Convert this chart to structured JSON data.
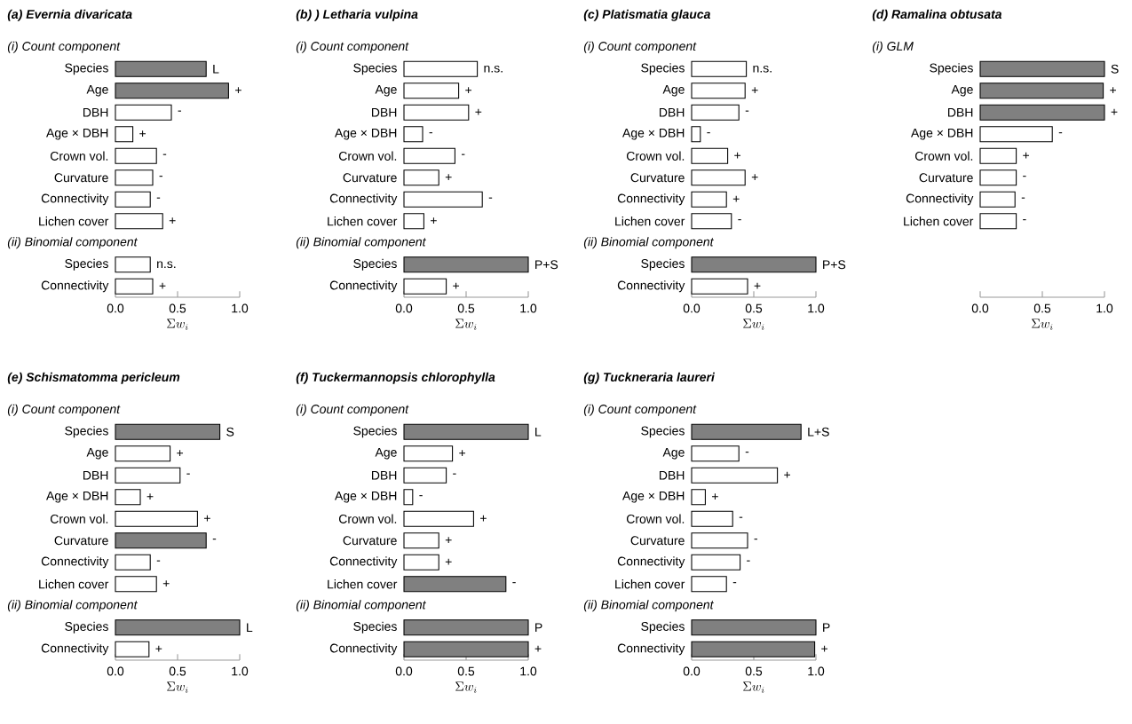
{
  "chart_data": [
    {
      "type": "bar",
      "orientation": "horizontal",
      "title": "(a) Evernia divaricata",
      "xlabel": "\\Sigma w_{i}",
      "xlim": [
        0,
        1
      ],
      "xticks": [
        {
          "value": 0,
          "label": "0.0"
        },
        {
          "value": 0.5,
          "label": "0.5"
        },
        {
          "value": 1,
          "label": "1.0"
        }
      ],
      "annotations": [
        "(i) Count component",
        "(ii) Binomial component"
      ],
      "categories": [
        null,
        "Species",
        "Age",
        "DBH",
        "Age × DBH",
        "Crown vol.",
        "Curvature",
        "Connectivity",
        "Lichen cover",
        null,
        "Species",
        "Connectivity"
      ],
      "values": [
        null,
        0.73,
        0.91,
        0.45,
        0.14,
        0.33,
        0.3,
        0.28,
        0.38,
        null,
        0.28,
        0.3
      ],
      "colors": [
        null,
        "#808080",
        "#808080",
        "#ffffff",
        "#ffffff",
        "#ffffff",
        "#ffffff",
        "#ffffff",
        "#ffffff",
        null,
        "#ffffff",
        "#ffffff"
      ],
      "value_labels": [
        null,
        "L",
        "+",
        "-",
        "+",
        "-",
        "-",
        "-",
        "+",
        null,
        "n.s.",
        "+"
      ]
    },
    {
      "type": "bar",
      "orientation": "horizontal",
      "title": "(b) ) Letharia vulpina",
      "xlabel": "\\Sigma w_{i}",
      "xlim": [
        0,
        1
      ],
      "xticks": [
        {
          "value": 0,
          "label": "0.0"
        },
        {
          "value": 0.5,
          "label": "0.5"
        },
        {
          "value": 1,
          "label": "1.0"
        }
      ],
      "annotations": [
        "(i) Count component",
        "(ii) Binomial component"
      ],
      "categories": [
        null,
        "Species",
        "Age",
        "DBH",
        "Age × DBH",
        "Crown vol.",
        "Curvature",
        "Connectivity",
        "Lichen cover",
        null,
        "Species",
        "Connectivity"
      ],
      "values": [
        null,
        0.59,
        0.44,
        0.52,
        0.15,
        0.41,
        0.28,
        0.63,
        0.16,
        null,
        1.0,
        0.34
      ],
      "colors": [
        null,
        "#ffffff",
        "#ffffff",
        "#ffffff",
        "#ffffff",
        "#ffffff",
        "#ffffff",
        "#ffffff",
        "#ffffff",
        null,
        "#808080",
        "#ffffff"
      ],
      "value_labels": [
        null,
        "n.s.",
        "+",
        "+",
        "-",
        "-",
        "+",
        "-",
        "+",
        null,
        "P+S",
        "+"
      ]
    },
    {
      "type": "bar",
      "orientation": "horizontal",
      "title": "(c) Platismatia glauca",
      "xlabel": "\\Sigma w_{i}",
      "xlim": [
        0,
        1
      ],
      "xticks": [
        {
          "value": 0,
          "label": "0.0"
        },
        {
          "value": 0.5,
          "label": "0.5"
        },
        {
          "value": 1,
          "label": "1.0"
        }
      ],
      "annotations": [
        "(i) Count component",
        "(ii) Binomial component"
      ],
      "categories": [
        null,
        "Species",
        "Age",
        "DBH",
        "Age × DBH",
        "Crown vol.",
        "Curvature",
        "Connectivity",
        "Lichen cover",
        null,
        "Species",
        "Connectivity"
      ],
      "values": [
        null,
        0.44,
        0.43,
        0.38,
        0.07,
        0.29,
        0.43,
        0.28,
        0.32,
        null,
        1.0,
        0.45
      ],
      "colors": [
        null,
        "#ffffff",
        "#ffffff",
        "#ffffff",
        "#ffffff",
        "#ffffff",
        "#ffffff",
        "#ffffff",
        "#ffffff",
        null,
        "#808080",
        "#ffffff"
      ],
      "value_labels": [
        null,
        "n.s.",
        "+",
        "-",
        "-",
        "+",
        "+",
        "+",
        "-",
        null,
        "P+S",
        "+"
      ]
    },
    {
      "type": "bar",
      "orientation": "horizontal",
      "title": "(d) Ramalina obtusata",
      "xlabel": "\\Sigma w_{i}",
      "xlim": [
        0,
        1
      ],
      "xticks": [
        {
          "value": 0,
          "label": "0.0"
        },
        {
          "value": 0.5,
          "label": "0.5"
        },
        {
          "value": 1,
          "label": "1.0"
        }
      ],
      "annotations": [
        "(i) GLM"
      ],
      "categories": [
        null,
        "Species",
        "Age",
        "DBH",
        "Age × DBH",
        "Crown vol.",
        "Curvature",
        "Connectivity",
        "Lichen cover"
      ],
      "values": [
        null,
        1.0,
        0.99,
        1.0,
        0.58,
        0.29,
        0.29,
        0.28,
        0.29
      ],
      "colors": [
        null,
        "#808080",
        "#808080",
        "#808080",
        "#ffffff",
        "#ffffff",
        "#ffffff",
        "#ffffff",
        "#ffffff"
      ],
      "value_labels": [
        null,
        "S",
        "+",
        "+",
        "-",
        "+",
        "-",
        "-",
        "-"
      ]
    },
    {
      "type": "bar",
      "orientation": "horizontal",
      "title": "(e) Schismatomma pericleum",
      "xlabel": "\\Sigma w_{i}",
      "xlim": [
        0,
        1
      ],
      "xticks": [
        {
          "value": 0,
          "label": "0.0"
        },
        {
          "value": 0.5,
          "label": "0.5"
        },
        {
          "value": 1,
          "label": "1.0"
        }
      ],
      "annotations": [
        "(i) Count component",
        "(ii) Binomial component"
      ],
      "categories": [
        null,
        "Species",
        "Age",
        "DBH",
        "Age × DBH",
        "Crown vol.",
        "Curvature",
        "Connectivity",
        "Lichen cover",
        null,
        "Species",
        "Connectivity"
      ],
      "values": [
        null,
        0.84,
        0.44,
        0.52,
        0.2,
        0.66,
        0.73,
        0.28,
        0.33,
        null,
        1.0,
        0.27
      ],
      "colors": [
        null,
        "#808080",
        "#ffffff",
        "#ffffff",
        "#ffffff",
        "#ffffff",
        "#808080",
        "#ffffff",
        "#ffffff",
        null,
        "#808080",
        "#ffffff"
      ],
      "value_labels": [
        null,
        "S",
        "+",
        "-",
        "+",
        "+",
        "-",
        "-",
        "+",
        null,
        "L",
        "+"
      ]
    },
    {
      "type": "bar",
      "orientation": "horizontal",
      "title": "(f) Tuckermannopsis chlorophylla",
      "xlabel": "\\Sigma w_{i}",
      "xlim": [
        0,
        1
      ],
      "xticks": [
        {
          "value": 0,
          "label": "0.0"
        },
        {
          "value": 0.5,
          "label": "0.5"
        },
        {
          "value": 1,
          "label": "1.0"
        }
      ],
      "annotations": [
        "(i) Count component",
        "(ii) Binomial component"
      ],
      "categories": [
        null,
        "Species",
        "Age",
        "DBH",
        "Age × DBH",
        "Crown vol.",
        "Curvature",
        "Connectivity",
        "Lichen cover",
        null,
        "Species",
        "Connectivity"
      ],
      "values": [
        null,
        1.0,
        0.39,
        0.34,
        0.07,
        0.56,
        0.28,
        0.28,
        0.82,
        null,
        1.0,
        1.0
      ],
      "colors": [
        null,
        "#808080",
        "#ffffff",
        "#ffffff",
        "#ffffff",
        "#ffffff",
        "#ffffff",
        "#ffffff",
        "#808080",
        null,
        "#808080",
        "#808080"
      ],
      "value_labels": [
        null,
        "L",
        "+",
        "-",
        "-",
        "+",
        "+",
        "+",
        "-",
        null,
        "P",
        "+"
      ]
    },
    {
      "type": "bar",
      "orientation": "horizontal",
      "title": "(g) Tuckneraria laureri",
      "xlabel": "\\Sigma w_{i}",
      "xlim": [
        0,
        1
      ],
      "xticks": [
        {
          "value": 0,
          "label": "0.0"
        },
        {
          "value": 0.5,
          "label": "0.5"
        },
        {
          "value": 1,
          "label": "1.0"
        }
      ],
      "annotations": [
        "(i) Count component",
        "(ii) Binomial component"
      ],
      "categories": [
        null,
        "Species",
        "Age",
        "DBH",
        "Age × DBH",
        "Crown vol.",
        "Curvature",
        "Connectivity",
        "Lichen cover",
        null,
        "Species",
        "Connectivity"
      ],
      "values": [
        null,
        0.88,
        0.38,
        0.69,
        0.11,
        0.33,
        0.45,
        0.39,
        0.28,
        null,
        1.0,
        0.99
      ],
      "colors": [
        null,
        "#808080",
        "#ffffff",
        "#ffffff",
        "#ffffff",
        "#ffffff",
        "#ffffff",
        "#ffffff",
        "#ffffff",
        null,
        "#808080",
        "#808080"
      ],
      "value_labels": [
        null,
        "L+S",
        "-",
        "+",
        "+",
        "-",
        "-",
        "-",
        "-",
        null,
        "P",
        "+"
      ]
    }
  ]
}
